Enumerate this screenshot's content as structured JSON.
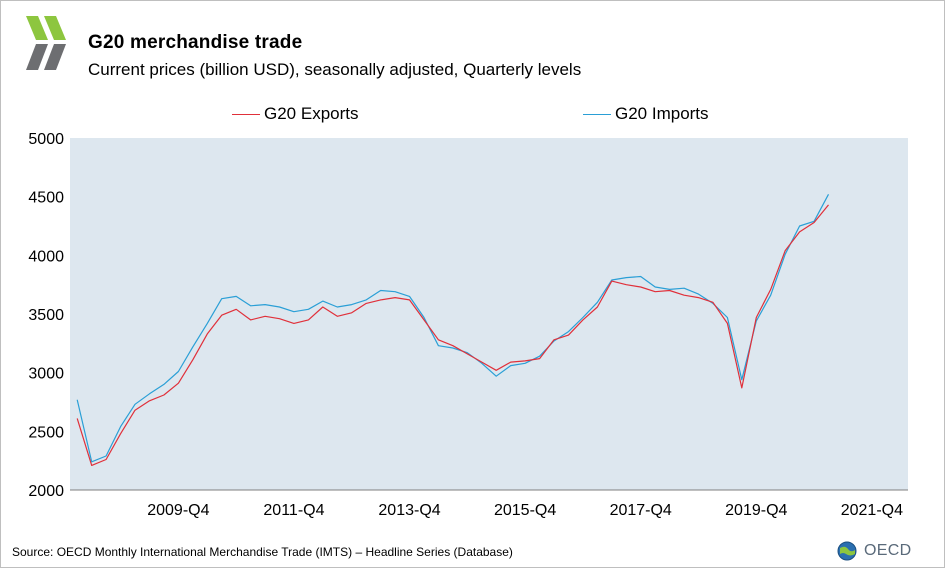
{
  "header": {
    "title": "G20 merchandise  trade",
    "subtitle": "Current prices (billion USD), seasonally adjusted, Quarterly levels"
  },
  "footer": {
    "source": "Source: OECD Monthly International Merchandise Trade (IMTS) – Headline Series (Database)",
    "brand": "OECD"
  },
  "colors": {
    "plot_background": "#dde7ef",
    "exports": "#e0303a",
    "imports": "#2a9fd6",
    "logo_green": "#8dc63f",
    "logo_grey": "#6d6e71"
  },
  "chart_data": {
    "type": "line",
    "title": "G20 merchandise  trade",
    "subtitle": "Current prices (billion USD), seasonally adjusted, Quarterly levels",
    "xlabel": "",
    "ylabel": "",
    "ylim": [
      2000,
      5000
    ],
    "yticks": [
      2000,
      2500,
      3000,
      3500,
      4000,
      4500,
      5000
    ],
    "x_tick_labels": [
      "2009-Q4",
      "2011-Q4",
      "2013-Q4",
      "2015-Q4",
      "2017-Q4",
      "2019-Q4",
      "2021-Q4"
    ],
    "x_tick_indices": [
      7,
      15,
      23,
      31,
      39,
      47,
      55
    ],
    "grid": false,
    "legend_position": "top",
    "x": [
      "2008-Q1",
      "2008-Q2",
      "2008-Q3",
      "2008-Q4",
      "2009-Q1",
      "2009-Q2",
      "2009-Q3",
      "2009-Q4",
      "2010-Q1",
      "2010-Q2",
      "2010-Q3",
      "2010-Q4",
      "2011-Q1",
      "2011-Q2",
      "2011-Q3",
      "2011-Q4",
      "2012-Q1",
      "2012-Q2",
      "2012-Q3",
      "2012-Q4",
      "2013-Q1",
      "2013-Q2",
      "2013-Q3",
      "2013-Q4",
      "2014-Q1",
      "2014-Q2",
      "2014-Q3",
      "2014-Q4",
      "2015-Q1",
      "2015-Q2",
      "2015-Q3",
      "2015-Q4",
      "2016-Q1",
      "2016-Q2",
      "2016-Q3",
      "2016-Q4",
      "2017-Q1",
      "2017-Q2",
      "2017-Q3",
      "2017-Q4",
      "2018-Q1",
      "2018-Q2",
      "2018-Q3",
      "2018-Q4",
      "2019-Q1",
      "2019-Q2",
      "2019-Q3",
      "2019-Q4",
      "2020-Q1",
      "2020-Q2",
      "2020-Q3",
      "2020-Q4",
      "2021-Q1",
      "2021-Q2",
      "2021-Q3",
      "2021-Q4",
      "2022-Q1",
      "2022-Q2"
    ],
    "series": [
      {
        "name": "G20 Exports",
        "values": [
          2610,
          2210,
          2260,
          2480,
          2680,
          2760,
          2810,
          2910,
          3110,
          3330,
          3490,
          3540,
          3450,
          3480,
          3460,
          3420,
          3450,
          3560,
          3480,
          3510,
          3590,
          3620,
          3640,
          3620,
          3450,
          3280,
          3230,
          3160,
          3090,
          3020,
          3090,
          3100,
          3120,
          3280,
          3320,
          3450,
          3560,
          3780,
          3750,
          3730,
          3690,
          3700,
          3660,
          3640,
          3600,
          3420,
          2870,
          3470,
          3710,
          4040,
          4200,
          4280,
          4430,
          null,
          null,
          null,
          null,
          null
        ]
      },
      {
        "name": "G20 Imports",
        "values": [
          2770,
          2240,
          2290,
          2540,
          2730,
          2820,
          2900,
          3010,
          3220,
          3420,
          3630,
          3650,
          3570,
          3580,
          3560,
          3520,
          3540,
          3610,
          3560,
          3580,
          3620,
          3700,
          3690,
          3650,
          3470,
          3230,
          3210,
          3170,
          3080,
          2970,
          3060,
          3080,
          3140,
          3270,
          3350,
          3470,
          3600,
          3790,
          3810,
          3820,
          3730,
          3710,
          3720,
          3670,
          3590,
          3470,
          2940,
          3440,
          3660,
          4010,
          4250,
          4290,
          4520,
          null,
          null,
          null,
          null,
          null
        ]
      }
    ]
  }
}
